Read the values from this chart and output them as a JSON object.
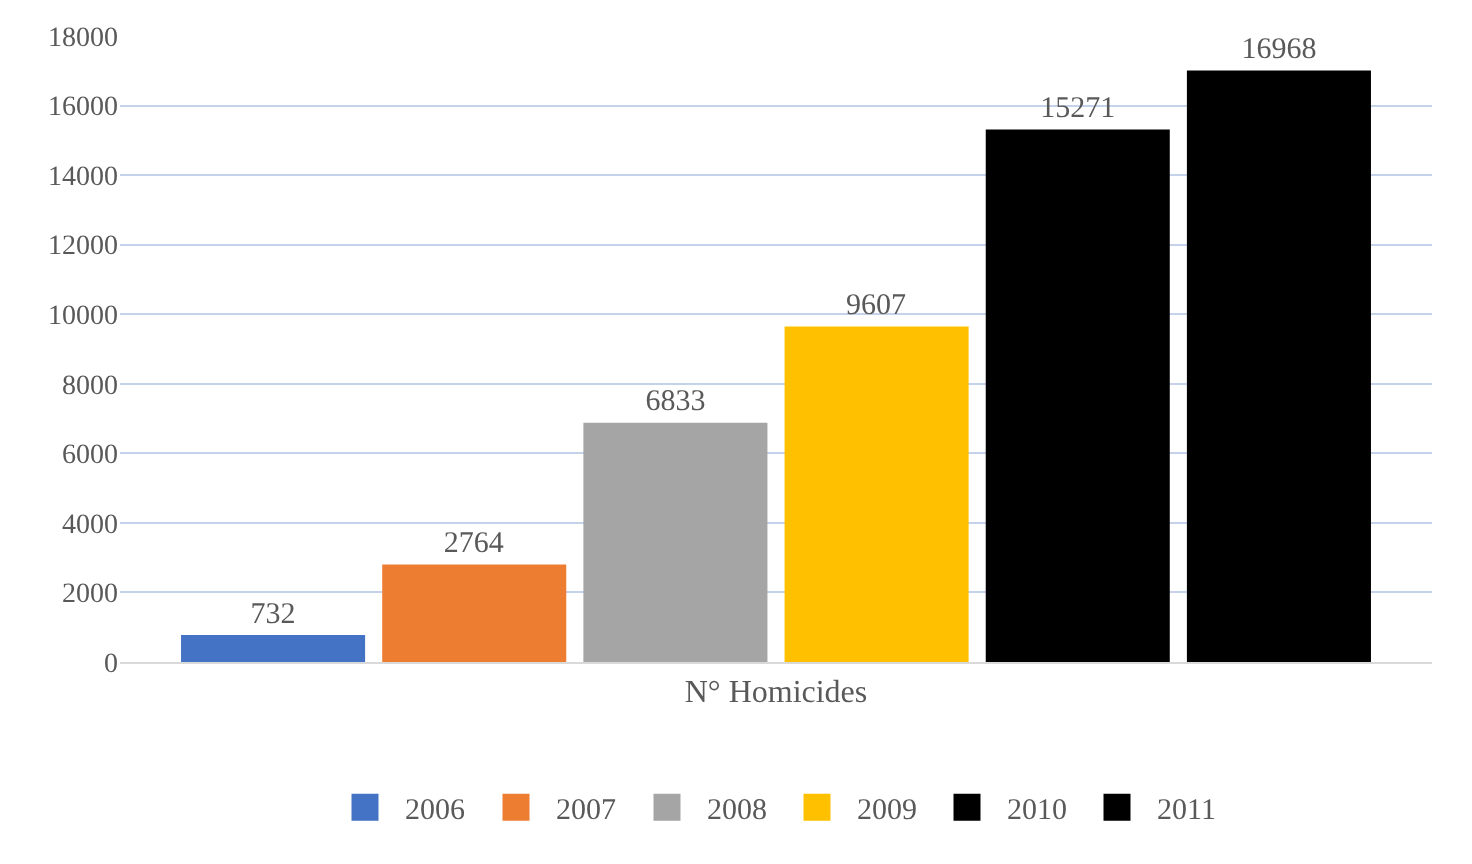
{
  "chart_data": {
    "type": "bar",
    "categories": [
      "N° Homicides"
    ],
    "series": [
      {
        "name": "2006",
        "color": "#4472c4",
        "values": [
          732
        ]
      },
      {
        "name": "2007",
        "color": "#ed7d31",
        "values": [
          2764
        ]
      },
      {
        "name": "2008",
        "color": "#a5a5a5",
        "values": [
          6833
        ]
      },
      {
        "name": "2009",
        "color": "#ffc000",
        "values": [
          9607
        ]
      },
      {
        "name": "2010",
        "color": "#000000",
        "values": [
          15271
        ]
      },
      {
        "name": "2011",
        "color": "#000000",
        "values": [
          16968
        ]
      }
    ],
    "ylim": [
      0,
      18000
    ],
    "yticks": [
      0,
      2000,
      4000,
      6000,
      8000,
      10000,
      12000,
      14000,
      16000,
      18000
    ],
    "grid": "y",
    "legend": "bottom",
    "data_labels": true
  }
}
